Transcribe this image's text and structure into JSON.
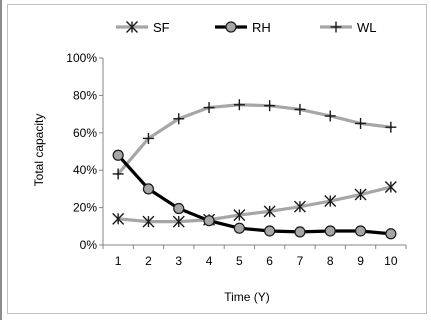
{
  "chart_data": {
    "type": "line",
    "xlabel": "Time (Y)",
    "ylabel": "Total capacity",
    "x": [
      1,
      2,
      3,
      4,
      5,
      6,
      7,
      8,
      9,
      10
    ],
    "ylim": [
      0,
      100
    ],
    "yticks": [
      0,
      20,
      40,
      60,
      80,
      100
    ],
    "ytick_labels": [
      "0%",
      "20%",
      "40%",
      "60%",
      "80%",
      "100%"
    ],
    "xtick_labels": [
      "1",
      "2",
      "3",
      "4",
      "5",
      "6",
      "7",
      "8",
      "9",
      "10"
    ],
    "grid": false,
    "legend_position": "top",
    "series": [
      {
        "name": "SF",
        "marker": "asterisk",
        "color": "#a6a6a6",
        "marker_color": "#1a1a1a",
        "values": [
          14,
          12.5,
          12.5,
          13.5,
          16,
          18,
          20.5,
          23.5,
          27,
          31
        ]
      },
      {
        "name": "RH",
        "marker": "circle",
        "color": "#000000",
        "marker_color": "#a6a6a6",
        "values": [
          48,
          30,
          19.5,
          13,
          9,
          7.5,
          7,
          7.5,
          7.5,
          6
        ]
      },
      {
        "name": "WL",
        "marker": "plus",
        "color": "#a6a6a6",
        "marker_color": "#1a1a1a",
        "values": [
          38,
          57,
          67.5,
          73.5,
          75,
          74.5,
          72.5,
          69,
          65,
          63
        ]
      }
    ]
  }
}
